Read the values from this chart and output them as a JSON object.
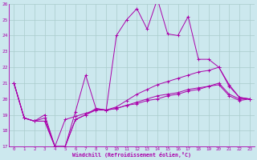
{
  "xlabel": "Windchill (Refroidissement éolien,°C)",
  "bg_color": "#cce8ee",
  "grid_color": "#aacccc",
  "line_color": "#aa00aa",
  "xlim": [
    -0.5,
    23.5
  ],
  "ylim": [
    17,
    26
  ],
  "xticks": [
    0,
    1,
    2,
    3,
    4,
    5,
    6,
    7,
    8,
    9,
    10,
    11,
    12,
    13,
    14,
    15,
    16,
    17,
    18,
    19,
    20,
    21,
    22,
    23
  ],
  "yticks": [
    17,
    18,
    19,
    20,
    21,
    22,
    23,
    24,
    25,
    26
  ],
  "line1_x": [
    0,
    1,
    2,
    3,
    4,
    5,
    6,
    7,
    8,
    9,
    10,
    11,
    12,
    13,
    14,
    15,
    16,
    17,
    18,
    19,
    20,
    21,
    22,
    23
  ],
  "line1_y": [
    21.0,
    18.8,
    18.6,
    18.8,
    17.0,
    17.0,
    19.2,
    21.5,
    19.4,
    19.3,
    24.0,
    25.0,
    25.7,
    24.4,
    26.3,
    24.1,
    24.0,
    25.2,
    22.5,
    22.5,
    22.0,
    20.8,
    20.1,
    20.0
  ],
  "line2_x": [
    0,
    1,
    2,
    3,
    4,
    5,
    6,
    7,
    8,
    9,
    10,
    11,
    12,
    13,
    14,
    15,
    16,
    17,
    18,
    19,
    20,
    21,
    22,
    23
  ],
  "line2_y": [
    21.0,
    18.8,
    18.6,
    18.6,
    17.0,
    17.0,
    18.7,
    19.0,
    19.4,
    19.3,
    19.5,
    19.9,
    20.3,
    20.6,
    20.9,
    21.1,
    21.3,
    21.5,
    21.7,
    21.8,
    22.0,
    20.9,
    20.1,
    20.0
  ],
  "line3_x": [
    0,
    1,
    2,
    3,
    4,
    5,
    6,
    7,
    8,
    9,
    10,
    11,
    12,
    13,
    14,
    15,
    16,
    17,
    18,
    19,
    20,
    21,
    22,
    23
  ],
  "line3_y": [
    21.0,
    18.8,
    18.6,
    18.6,
    17.0,
    17.0,
    18.7,
    19.0,
    19.3,
    19.3,
    19.4,
    19.6,
    19.8,
    20.0,
    20.2,
    20.3,
    20.4,
    20.6,
    20.7,
    20.8,
    21.0,
    20.3,
    20.0,
    20.0
  ],
  "line4_x": [
    0,
    1,
    2,
    3,
    4,
    5,
    6,
    7,
    8,
    9,
    10,
    11,
    12,
    13,
    14,
    15,
    16,
    17,
    18,
    19,
    20,
    21,
    22,
    23
  ],
  "line4_y": [
    21.0,
    18.8,
    18.6,
    19.0,
    17.0,
    18.7,
    18.9,
    19.1,
    19.3,
    19.3,
    19.4,
    19.6,
    19.7,
    19.9,
    20.0,
    20.2,
    20.3,
    20.5,
    20.6,
    20.8,
    20.9,
    20.2,
    19.9,
    20.0
  ]
}
